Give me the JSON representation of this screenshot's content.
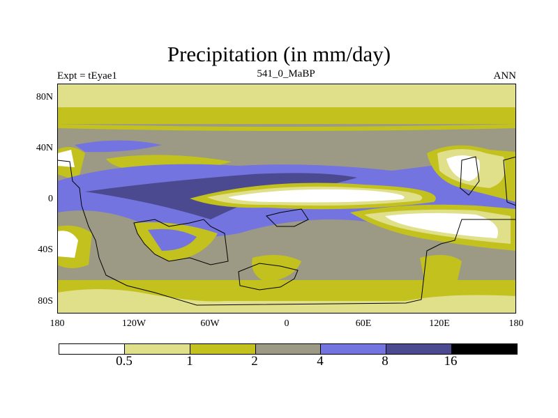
{
  "title": "Precipitation (in mm/day)",
  "left_string": "Expt = tEyae1",
  "center_string": "541_0_MaBP",
  "right_string": "ANN",
  "x_ticks": [
    "180",
    "120W",
    "60W",
    "0",
    "60E",
    "120E",
    "180"
  ],
  "y_ticks": [
    "80N",
    "40N",
    "0",
    "40S",
    "80S"
  ],
  "colorbar": {
    "labels": [
      "0.5",
      "1",
      "2",
      "4",
      "8",
      "16"
    ],
    "colors": [
      "#ffffff",
      "#e0e08a",
      "#c2c11e",
      "#9c9a84",
      "#7474e0",
      "#4b4a90",
      "#000000"
    ]
  }
}
